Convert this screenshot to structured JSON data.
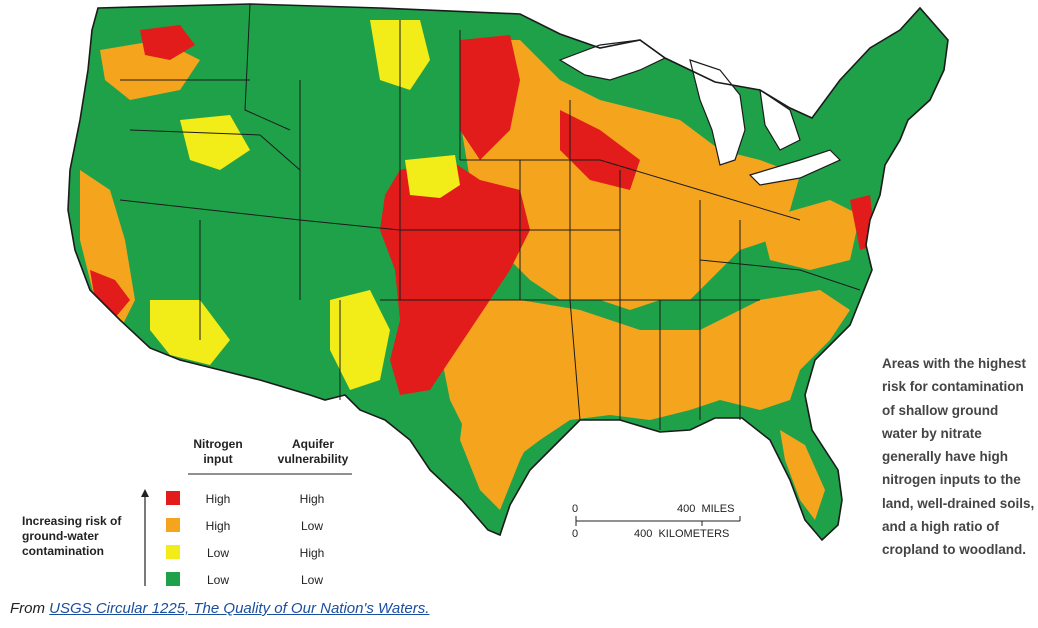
{
  "legend": {
    "header_nitrogen": [
      "Nitrogen",
      "input"
    ],
    "header_aquifer": [
      "Aquifer",
      "vulnerability"
    ],
    "risk_label": [
      "Increasing risk of",
      "ground-water",
      "contamination"
    ],
    "rows": [
      {
        "color": "#e21b1b",
        "nitrogen": "High",
        "aquifer": "High"
      },
      {
        "color": "#f5a41e",
        "nitrogen": "High",
        "aquifer": "Low"
      },
      {
        "color": "#f2ec18",
        "nitrogen": "Low",
        "aquifer": "High"
      },
      {
        "color": "#1fa14a",
        "nitrogen": "Low",
        "aquifer": "Low"
      }
    ]
  },
  "scale": {
    "zero_top": "0",
    "zero_bottom": "0",
    "miles": "400  MILES",
    "kilometers": "400  KILOMETERS"
  },
  "side_note": [
    "Areas with the highest",
    "risk for contamination",
    "of shallow ground",
    "water by nitrate",
    "generally have high",
    "nitrogen inputs to the",
    "land, well-drained soils,",
    "and a high ratio of",
    "cropland to woodland."
  ],
  "footer": {
    "prefix": "From ",
    "link": "USGS Circular 1225, The Quality of Our Nation's Waters."
  },
  "colors": {
    "high_high": "#e21b1b",
    "high_low": "#f5a41e",
    "low_high": "#f2ec18",
    "low_low": "#1fa14a",
    "border": "#1b1b1b",
    "water": "#ffffff"
  }
}
